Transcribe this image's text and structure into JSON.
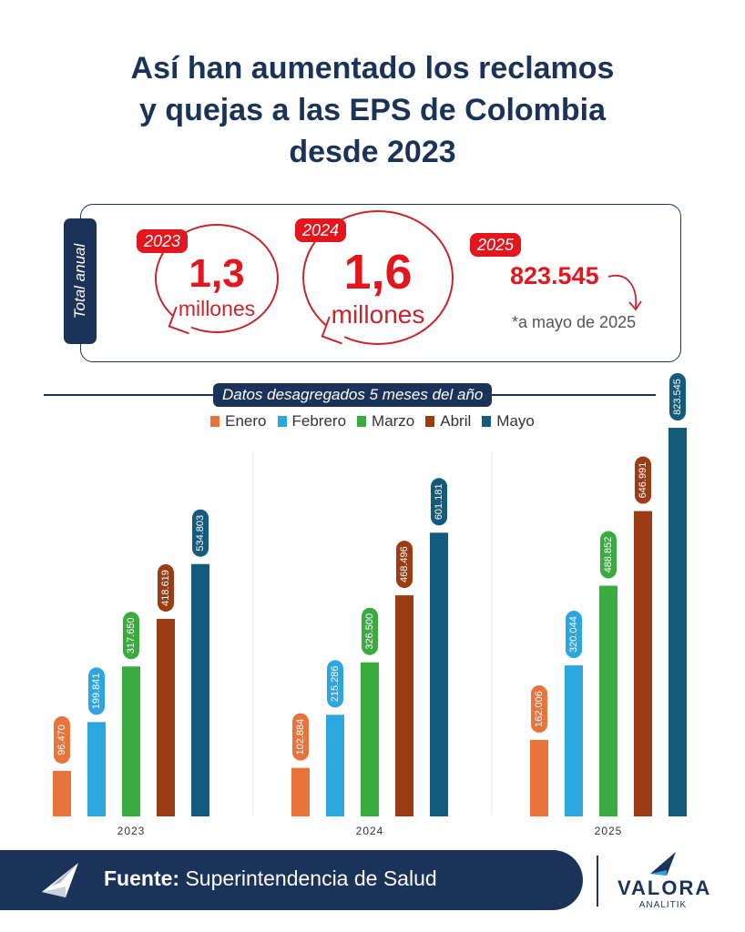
{
  "title": {
    "line1": "Así han aumentado los reclamos",
    "line2": "y quejas a las EPS de Colombia",
    "line3": "desde 2023"
  },
  "totals": {
    "label": "Total anual",
    "items": [
      {
        "year": "2023",
        "value": "1,3",
        "unit": "millones"
      },
      {
        "year": "2024",
        "value": "1,6",
        "unit": "millones"
      },
      {
        "year": "2025",
        "value": "823.545",
        "note": "*a mayo de 2025"
      }
    ]
  },
  "section_label": "Datos desagregados 5 meses del año",
  "colors": {
    "navy": "#1b3358",
    "red": "#e3161d",
    "Enero": "#e8743b",
    "Febrero": "#2ba6de",
    "Marzo": "#3aab3f",
    "Abril": "#9b3c14",
    "Mayo": "#135b7d"
  },
  "chart_data": {
    "type": "bar",
    "categories": [
      "2023",
      "2024",
      "2025"
    ],
    "series": [
      {
        "name": "Enero",
        "values": [
          96470,
          102884,
          162006
        ],
        "labels": [
          "96.470",
          "102.884",
          "162.006"
        ]
      },
      {
        "name": "Febrero",
        "values": [
          199841,
          215286,
          320044
        ],
        "labels": [
          "199.841",
          "215.286",
          "320.044"
        ]
      },
      {
        "name": "Marzo",
        "values": [
          317650,
          326500,
          488852
        ],
        "labels": [
          "317.650",
          "326.500",
          "488.852"
        ]
      },
      {
        "name": "Abril",
        "values": [
          418619,
          468496,
          646991
        ],
        "labels": [
          "418.619",
          "468.496",
          "646.991"
        ]
      },
      {
        "name": "Mayo",
        "values": [
          534803,
          601181,
          823545
        ],
        "labels": [
          "534.803",
          "601.181",
          "823.545"
        ]
      }
    ],
    "legend_position": "top"
  },
  "footer": {
    "source_label": "Fuente:",
    "source_value": "Superintendencia de Salud",
    "brand": "VALORA",
    "brand_sub": "ANALITIK"
  }
}
